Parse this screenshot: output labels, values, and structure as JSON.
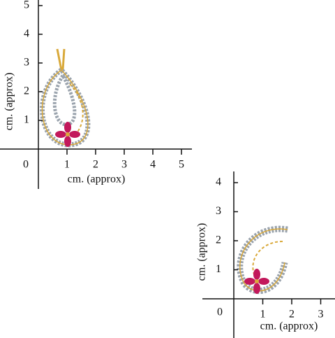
{
  "scales": [
    {
      "y_ticks": [
        "5",
        "4",
        "3",
        "2",
        "1"
      ],
      "origin": "0",
      "x_ticks": [
        "1",
        "2",
        "3",
        "4",
        "5"
      ],
      "x_title": "cm. (approx)",
      "y_title": "cm. (approx)"
    },
    {
      "y_ticks": [
        "4",
        "3",
        "2",
        "1"
      ],
      "origin": "0",
      "x_ticks": [
        "1",
        "2",
        "3"
      ],
      "x_title": "cm. (approx)",
      "y_title": "cm. (approx)"
    }
  ]
}
